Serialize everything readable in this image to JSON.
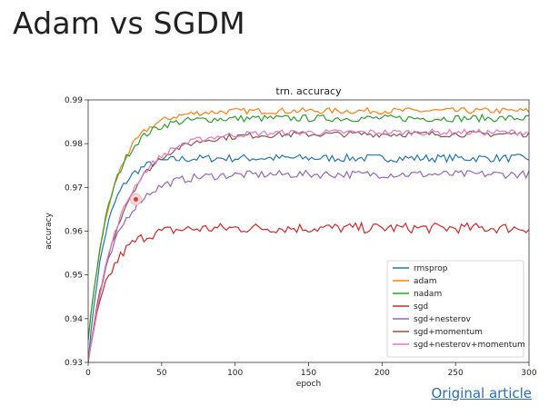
{
  "slide": {
    "title": "Adam vs SGDM",
    "link_label": "Original article"
  },
  "chart_data": {
    "type": "line",
    "title": "trn. accuracy",
    "xlabel": "epoch",
    "ylabel": "accuracy",
    "xlim": [
      0,
      300
    ],
    "ylim": [
      0.93,
      0.99
    ],
    "xticks": [
      0,
      50,
      100,
      150,
      200,
      250,
      300
    ],
    "yticks": [
      "0.93",
      "0.94",
      "0.95",
      "0.96",
      "0.97",
      "0.98",
      "0.99"
    ],
    "grid": false,
    "legend_position": "bottom-right",
    "series": [
      {
        "name": "rmsprop",
        "color": "#1f77b4",
        "start": 0.93,
        "plateau": 0.9767,
        "rate": 12,
        "noise": 0.0009
      },
      {
        "name": "adam",
        "color": "#ff7f0e",
        "start": 0.935,
        "plateau": 0.9875,
        "rate": 16,
        "noise": 0.0007
      },
      {
        "name": "nadam",
        "color": "#2ca02c",
        "start": 0.935,
        "plateau": 0.9858,
        "rate": 15,
        "noise": 0.0008
      },
      {
        "name": "sgd",
        "color": "#d62728",
        "start": 0.93,
        "plateau": 0.9607,
        "rate": 14,
        "noise": 0.0012
      },
      {
        "name": "sgd+nesterov",
        "color": "#9467bd",
        "start": 0.93,
        "plateau": 0.973,
        "rate": 18,
        "noise": 0.0009
      },
      {
        "name": "sgd+momentum",
        "color": "#8c564b",
        "start": 0.93,
        "plateau": 0.9822,
        "rate": 22,
        "noise": 0.0007
      },
      {
        "name": "sgd+nesterov+momentum",
        "color": "#e377c2",
        "start": 0.93,
        "plateau": 0.9826,
        "rate": 22,
        "noise": 0.0007
      }
    ]
  }
}
